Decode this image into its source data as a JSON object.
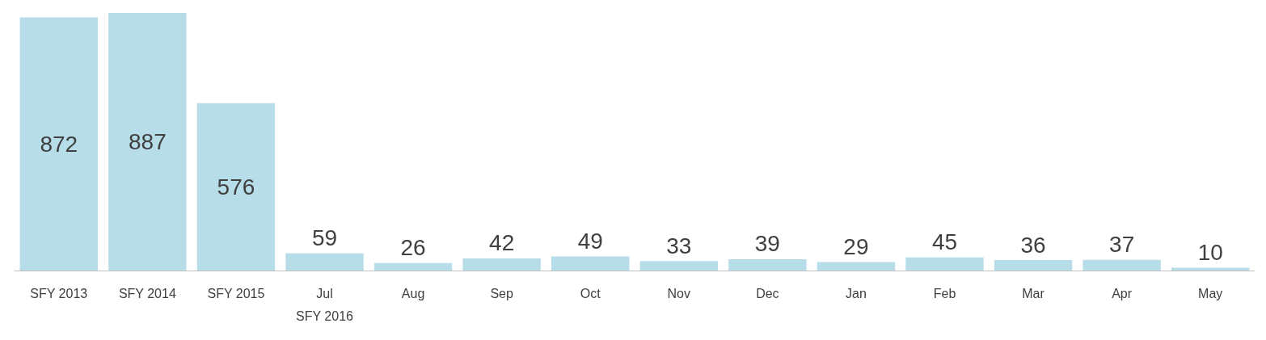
{
  "chart_data": {
    "type": "bar",
    "categories": [
      "SFY 2013",
      "SFY 2014",
      "SFY 2015",
      "Jul\nSFY 2016",
      "Aug",
      "Sep",
      "Oct",
      "Nov",
      "Dec",
      "Jan",
      "Feb",
      "Mar",
      "Apr",
      "May"
    ],
    "values": [
      872,
      887,
      576,
      59,
      26,
      42,
      49,
      33,
      39,
      29,
      45,
      36,
      37,
      10
    ],
    "color": "#b7dde8",
    "data_labels": true
  }
}
